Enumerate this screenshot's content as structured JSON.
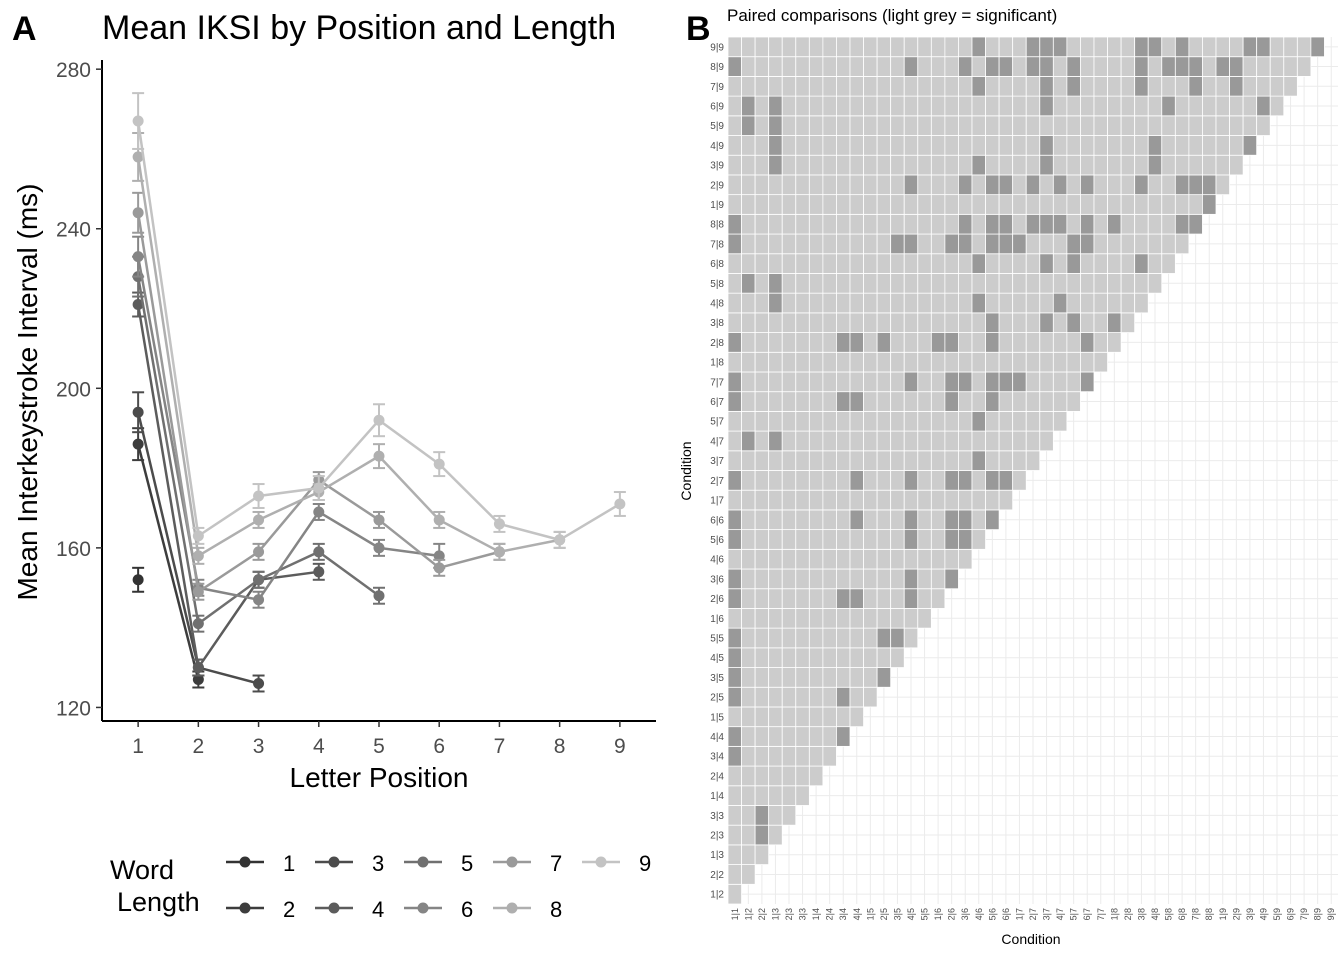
{
  "chart_data": [
    {
      "panel_label": "A",
      "type": "line",
      "title": "Mean IKSI by Position and Length",
      "xlabel": "Letter Position",
      "ylabel": "Mean Interkeystroke Interval (ms)",
      "x_ticks": [
        1,
        2,
        3,
        4,
        5,
        6,
        7,
        8,
        9
      ],
      "y_ticks": [
        120,
        160,
        200,
        240,
        280
      ],
      "xlim": [
        0.4,
        9.6
      ],
      "ylim": [
        116.6,
        282.3
      ],
      "legend": {
        "title_line1": "Word",
        "title_line2": "Length",
        "placement": "bottom"
      },
      "error_bars": true,
      "series": [
        {
          "name": "1",
          "color": "#333333",
          "x": [
            1
          ],
          "y": [
            152
          ],
          "err": [
            3
          ]
        },
        {
          "name": "2",
          "color": "#3d3d3d",
          "x": [
            1,
            2
          ],
          "y": [
            186,
            127
          ],
          "err": [
            4,
            2
          ]
        },
        {
          "name": "3",
          "color": "#4c4c4c",
          "x": [
            1,
            2,
            3
          ],
          "y": [
            194,
            130,
            126
          ],
          "err": [
            5,
            2,
            2
          ]
        },
        {
          "name": "4",
          "color": "#5c5c5c",
          "x": [
            1,
            2,
            3,
            4
          ],
          "y": [
            221,
            130,
            152,
            154
          ],
          "err": [
            3,
            2,
            2,
            2
          ]
        },
        {
          "name": "5",
          "color": "#707070",
          "x": [
            1,
            2,
            3,
            4,
            5
          ],
          "y": [
            228,
            141,
            152,
            159,
            148
          ],
          "err": [
            5,
            2,
            2,
            2,
            2
          ]
        },
        {
          "name": "6",
          "color": "#858585",
          "x": [
            1,
            2,
            3,
            4,
            5,
            6
          ],
          "y": [
            233,
            150,
            147,
            169,
            160,
            158
          ],
          "err": [
            5,
            2,
            2,
            2,
            2,
            3
          ]
        },
        {
          "name": "7",
          "color": "#9a9a9a",
          "x": [
            1,
            2,
            3,
            4,
            5,
            6,
            7
          ],
          "y": [
            244,
            149,
            159,
            177,
            167,
            155,
            159
          ],
          "err": [
            5,
            2,
            2,
            2,
            2,
            2,
            2
          ]
        },
        {
          "name": "8",
          "color": "#afafaf",
          "x": [
            1,
            2,
            3,
            4,
            5,
            6,
            7,
            8
          ],
          "y": [
            258,
            158,
            167,
            174,
            183,
            167,
            159,
            162
          ],
          "err": [
            6,
            2,
            2,
            2,
            3,
            2,
            2,
            2
          ]
        },
        {
          "name": "9",
          "color": "#c3c3c3",
          "x": [
            1,
            2,
            3,
            4,
            5,
            6,
            7,
            8,
            9
          ],
          "y": [
            267,
            163,
            173,
            175,
            192,
            181,
            166,
            162,
            171
          ],
          "err": [
            7,
            2,
            3,
            3,
            4,
            3,
            2,
            2,
            3
          ]
        }
      ]
    },
    {
      "panel_label": "B",
      "type": "heatmap",
      "title": "Paired comparisons (light grey = significant)",
      "xlabel": "Condition",
      "ylabel": "Condition",
      "categories": [
        "1|1",
        "1|2",
        "2|2",
        "1|3",
        "2|3",
        "3|3",
        "1|4",
        "2|4",
        "3|4",
        "4|4",
        "1|5",
        "2|5",
        "3|5",
        "4|5",
        "5|5",
        "1|6",
        "2|6",
        "3|6",
        "4|6",
        "5|6",
        "6|6",
        "1|7",
        "2|7",
        "3|7",
        "4|7",
        "5|7",
        "6|7",
        "7|7",
        "1|8",
        "2|8",
        "3|8",
        "4|8",
        "5|8",
        "6|8",
        "7|8",
        "8|8",
        "1|9",
        "2|9",
        "3|9",
        "4|9",
        "5|9",
        "6|9",
        "7|9",
        "8|9",
        "9|9"
      ],
      "y_categories": [
        "1|2",
        "2|2",
        "1|3",
        "2|3",
        "3|3",
        "1|4",
        "2|4",
        "3|4",
        "4|4",
        "1|5",
        "2|5",
        "3|5",
        "4|5",
        "5|5",
        "1|6",
        "2|6",
        "3|6",
        "4|6",
        "5|6",
        "6|6",
        "1|7",
        "2|7",
        "3|7",
        "4|7",
        "5|7",
        "6|7",
        "7|7",
        "1|8",
        "2|8",
        "3|8",
        "4|8",
        "5|8",
        "6|8",
        "7|8",
        "8|8",
        "1|9",
        "2|9",
        "3|9",
        "4|9",
        "5|9",
        "6|9",
        "7|9",
        "8|9",
        "9|9"
      ],
      "legend_colors": {
        "significant": "#cccccc",
        "not_significant": "#999999",
        "empty": "#ffffff",
        "grid": "#ebebeb"
      },
      "nonsignificant_cells": {
        "9|9": [
          "4|6",
          "2|7",
          "3|7",
          "4|7",
          "3|8",
          "4|8",
          "6|8",
          "3|9",
          "4|9",
          "8|9"
        ],
        "8|9": [
          "1|1",
          "4|5",
          "3|6",
          "5|6",
          "6|6",
          "2|7",
          "3|7",
          "5|7",
          "3|8",
          "5|8",
          "6|8",
          "7|8",
          "1|9",
          "2|9"
        ],
        "7|9": [
          "4|6",
          "3|7",
          "5|7",
          "3|8",
          "7|8",
          "2|9"
        ],
        "6|9": [
          "1|2",
          "1|3",
          "3|7",
          "5|8",
          "4|9"
        ],
        "5|9": [
          "1|2",
          "1|3"
        ],
        "4|9": [
          "1|3",
          "3|7",
          "4|8",
          "3|9"
        ],
        "3|9": [
          "1|3",
          "4|6",
          "3|7",
          "4|8"
        ],
        "2|9": [
          "4|5",
          "3|6",
          "5|6",
          "6|6",
          "2|7",
          "4|7",
          "6|7",
          "3|8",
          "6|8",
          "7|8",
          "8|8"
        ],
        "1|9": [
          "8|8"
        ],
        "8|8": [
          "1|1",
          "3|6",
          "5|6",
          "6|6",
          "2|7",
          "3|7",
          "4|7",
          "6|7",
          "1|8",
          "6|8",
          "7|8"
        ],
        "7|8": [
          "1|1",
          "3|5",
          "4|5",
          "2|6",
          "3|6",
          "5|6",
          "6|6",
          "1|7",
          "5|7",
          "6|7"
        ],
        "6|8": [
          "4|6",
          "3|7",
          "5|7",
          "3|8"
        ],
        "5|8": [
          "1|2",
          "1|3"
        ],
        "4|8": [
          "1|3",
          "4|6",
          "4|7"
        ],
        "3|8": [
          "5|6",
          "3|7",
          "5|7",
          "1|8"
        ],
        "2|8": [
          "1|1",
          "3|4",
          "4|4",
          "2|5",
          "1|6",
          "2|6",
          "5|6",
          "6|7"
        ],
        "7|7": [
          "1|1",
          "4|5",
          "2|6",
          "3|6",
          "5|6",
          "6|6",
          "1|7",
          "6|7"
        ],
        "6|7": [
          "1|1",
          "3|4",
          "4|4",
          "2|6",
          "5|6"
        ],
        "5|7": [
          "4|6"
        ],
        "4|7": [
          "1|2",
          "1|3"
        ],
        "3|7": [
          "4|6"
        ],
        "2|7": [
          "1|1",
          "4|4",
          "4|5",
          "2|6",
          "3|6",
          "5|6",
          "6|6"
        ],
        "6|6": [
          "1|1",
          "4|4",
          "4|5",
          "2|6",
          "3|6",
          "5|6"
        ],
        "5|6": [
          "1|1",
          "4|5",
          "2|6",
          "3|6"
        ],
        "3|6": [
          "1|1",
          "4|5",
          "2|6"
        ],
        "2|6": [
          "1|1",
          "3|4",
          "4|4",
          "4|5"
        ],
        "5|5": [
          "1|1",
          "2|5",
          "3|5"
        ],
        "4|5": [
          "1|1"
        ],
        "3|5": [
          "1|1",
          "2|5"
        ],
        "2|5": [
          "1|1",
          "3|4"
        ],
        "4|4": [
          "1|1",
          "3|4"
        ],
        "3|4": [
          "1|1"
        ],
        "3|3": [
          "2|2"
        ],
        "2|3": [
          "2|2"
        ]
      }
    }
  ]
}
